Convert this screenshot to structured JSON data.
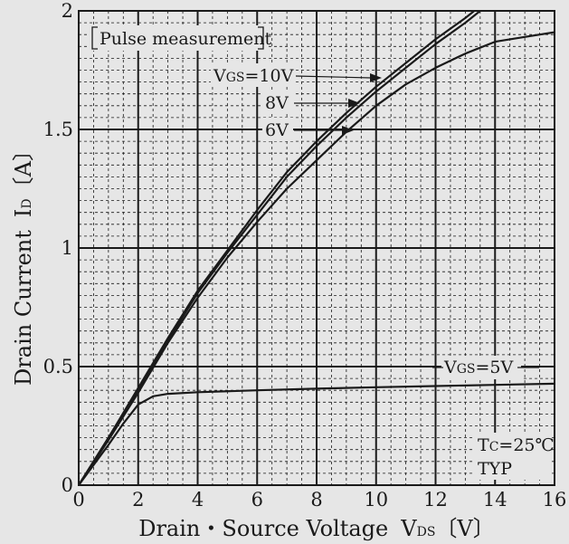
{
  "chart_data": {
    "type": "line",
    "xlabel": "Drain・Source Voltage",
    "xlabel_symbol": "V",
    "xlabel_symbol_sub": "DS",
    "xlabel_unit": "〔V〕",
    "ylabel": "Drain Current",
    "ylabel_symbol": "I",
    "ylabel_symbol_sub": "D",
    "ylabel_unit": "〔A〕",
    "xlim": [
      0,
      16
    ],
    "ylim": [
      0,
      2
    ],
    "xticks": [
      0,
      2,
      4,
      6,
      8,
      10,
      12,
      14,
      16
    ],
    "yticks": [
      0,
      0.5,
      1,
      1.5,
      2
    ],
    "xtick_labels": [
      "0",
      "2",
      "4",
      "6",
      "8",
      "10",
      "12",
      "14",
      "16"
    ],
    "ytick_labels": [
      "0",
      "0.5",
      "1",
      "1.5",
      "2"
    ],
    "grid": true,
    "annotations": {
      "pulse": "Pulse measurement",
      "vgs10_prefix": "V",
      "vgs10_sub": "GS",
      "vgs10_value": "=10V",
      "vgs8": "8V",
      "vgs6": "6V",
      "vgs5_prefix": "V",
      "vgs5_sub": "GS",
      "vgs5_value": "=5V",
      "tc_prefix": "T",
      "tc_sub": "C",
      "tc_value": "=25℃",
      "typ": "TYP"
    },
    "series": [
      {
        "name": "VGS=10V",
        "x": [
          0,
          1,
          2,
          3,
          4,
          5,
          6,
          7,
          8,
          9,
          10,
          11,
          12,
          13,
          13.5
        ],
        "y": [
          0,
          0.2,
          0.41,
          0.62,
          0.82,
          0.99,
          1.16,
          1.32,
          1.45,
          1.57,
          1.68,
          1.78,
          1.88,
          1.97,
          2.02
        ]
      },
      {
        "name": "8V",
        "x": [
          0,
          1,
          2,
          3,
          4,
          5,
          6,
          7,
          8,
          9,
          10,
          11,
          12,
          13,
          13.7
        ],
        "y": [
          0,
          0.2,
          0.4,
          0.61,
          0.81,
          0.98,
          1.14,
          1.3,
          1.43,
          1.55,
          1.66,
          1.76,
          1.86,
          1.95,
          2.02
        ]
      },
      {
        "name": "6V",
        "x": [
          0,
          1,
          2,
          3,
          4,
          5,
          6,
          7,
          8,
          9,
          10,
          11,
          12,
          13,
          14,
          15,
          16
        ],
        "y": [
          0,
          0.19,
          0.39,
          0.6,
          0.79,
          0.96,
          1.11,
          1.25,
          1.37,
          1.49,
          1.6,
          1.69,
          1.76,
          1.82,
          1.87,
          1.89,
          1.91
        ]
      },
      {
        "name": "VGS=5V",
        "x": [
          0,
          1,
          1.5,
          2,
          2.5,
          3,
          4,
          6,
          8,
          10,
          12,
          14,
          16
        ],
        "y": [
          0,
          0.17,
          0.26,
          0.34,
          0.375,
          0.385,
          0.392,
          0.4,
          0.407,
          0.413,
          0.418,
          0.423,
          0.428
        ]
      }
    ]
  }
}
